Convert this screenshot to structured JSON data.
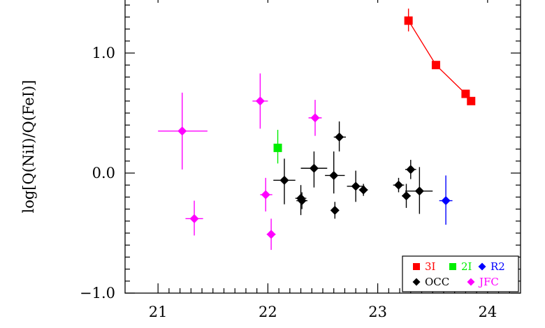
{
  "chart_data": {
    "type": "scatter",
    "title": "",
    "xlabel": "",
    "ylabel": "log[Q(NiI)/Q(FeI)]",
    "xlim": [
      20.7,
      24.3
    ],
    "ylim": [
      -1.0,
      1.5
    ],
    "x_ticks": [
      "21",
      "22",
      "23",
      "24"
    ],
    "y_ticks": [
      "1.0",
      "0.0",
      "−1.0"
    ],
    "grid": false,
    "legend_position": "bottom-right",
    "series": [
      {
        "name": "3I",
        "color": "#ff0000",
        "marker": "square",
        "connected": true,
        "points": [
          {
            "x": 23.28,
            "y": 1.27,
            "ylo": 1.18,
            "yhi": 1.37
          },
          {
            "x": 23.53,
            "y": 0.9
          },
          {
            "x": 23.8,
            "y": 0.66
          },
          {
            "x": 23.85,
            "y": 0.6
          }
        ]
      },
      {
        "name": "2I",
        "color": "#00ee00",
        "marker": "square",
        "connected": false,
        "points": [
          {
            "x": 22.09,
            "y": 0.21,
            "ylo": 0.08,
            "yhi": 0.36
          }
        ]
      },
      {
        "name": "R2",
        "color": "#0000ff",
        "marker": "diamond",
        "connected": false,
        "points": [
          {
            "x": 23.62,
            "y": -0.23,
            "xlo": 23.56,
            "xhi": 23.68,
            "ylo": -0.43,
            "yhi": -0.02
          }
        ]
      },
      {
        "name": "OCC",
        "color": "#000000",
        "marker": "diamond",
        "connected": false,
        "points": [
          {
            "x": 22.15,
            "y": -0.06,
            "xlo": 22.05,
            "xhi": 22.25,
            "ylo": -0.26,
            "yhi": 0.12
          },
          {
            "x": 22.3,
            "y": -0.21,
            "xlo": 22.25,
            "xhi": 22.35,
            "ylo": -0.35,
            "yhi": -0.1
          },
          {
            "x": 22.31,
            "y": -0.23,
            "xlo": 22.26,
            "xhi": 22.36,
            "ylo": -0.3,
            "yhi": -0.16
          },
          {
            "x": 22.42,
            "y": 0.04,
            "xlo": 22.3,
            "xhi": 22.54,
            "ylo": -0.12,
            "yhi": 0.18
          },
          {
            "x": 22.6,
            "y": -0.02,
            "xlo": 22.52,
            "xhi": 22.7,
            "ylo": -0.17,
            "yhi": 0.18
          },
          {
            "x": 22.61,
            "y": -0.31,
            "xlo": 22.58,
            "xhi": 22.64,
            "ylo": -0.38,
            "yhi": -0.24
          },
          {
            "x": 22.65,
            "y": 0.3,
            "xlo": 22.6,
            "xhi": 22.71,
            "ylo": 0.18,
            "yhi": 0.43
          },
          {
            "x": 22.8,
            "y": -0.11,
            "xlo": 22.72,
            "xhi": 22.88,
            "ylo": -0.24,
            "yhi": 0.02
          },
          {
            "x": 22.87,
            "y": -0.14,
            "xlo": 22.83,
            "xhi": 22.91,
            "ylo": -0.19,
            "yhi": -0.09
          },
          {
            "x": 23.19,
            "y": -0.1,
            "xlo": 23.14,
            "xhi": 23.24,
            "ylo": -0.16,
            "yhi": -0.04
          },
          {
            "x": 23.26,
            "y": -0.19,
            "xlo": 23.22,
            "xhi": 23.3,
            "ylo": -0.29,
            "yhi": -0.09
          },
          {
            "x": 23.3,
            "y": 0.03,
            "xlo": 23.25,
            "xhi": 23.35,
            "ylo": -0.05,
            "yhi": 0.11
          },
          {
            "x": 23.38,
            "y": -0.15,
            "xlo": 23.25,
            "xhi": 23.5,
            "ylo": -0.34,
            "yhi": 0.05
          }
        ]
      },
      {
        "name": "JFC",
        "color": "#ff00ff",
        "marker": "diamond",
        "connected": false,
        "points": [
          {
            "x": 21.22,
            "y": 0.35,
            "xlo": 21.0,
            "xhi": 21.45,
            "ylo": 0.03,
            "yhi": 0.67
          },
          {
            "x": 21.33,
            "y": -0.38,
            "xlo": 21.25,
            "xhi": 21.41,
            "ylo": -0.52,
            "yhi": -0.23
          },
          {
            "x": 21.93,
            "y": 0.6,
            "xlo": 21.86,
            "xhi": 22.0,
            "ylo": 0.37,
            "yhi": 0.83
          },
          {
            "x": 21.98,
            "y": -0.18,
            "xlo": 21.93,
            "xhi": 22.04,
            "ylo": -0.32,
            "yhi": -0.04
          },
          {
            "x": 22.03,
            "y": -0.51,
            "xlo": 21.99,
            "xhi": 22.07,
            "ylo": -0.64,
            "yhi": -0.38
          },
          {
            "x": 22.43,
            "y": 0.46,
            "xlo": 22.37,
            "xhi": 22.49,
            "ylo": 0.31,
            "yhi": 0.61
          }
        ]
      }
    ]
  }
}
